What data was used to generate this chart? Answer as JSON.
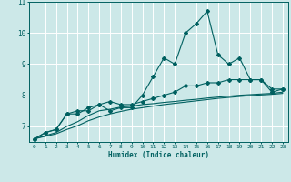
{
  "xlabel": "Humidex (Indice chaleur)",
  "background_color": "#cce8e8",
  "grid_color": "#ffffff",
  "line_color": "#006060",
  "x_values": [
    0,
    1,
    2,
    3,
    4,
    5,
    6,
    7,
    8,
    9,
    10,
    11,
    12,
    13,
    14,
    15,
    16,
    17,
    18,
    19,
    20,
    21,
    22,
    23
  ],
  "line1": [
    6.6,
    6.8,
    6.9,
    7.4,
    7.4,
    7.6,
    7.7,
    7.5,
    7.6,
    7.6,
    8.0,
    8.6,
    9.2,
    9.0,
    10.0,
    10.3,
    10.7,
    9.3,
    9.0,
    9.2,
    8.5,
    8.5,
    8.1,
    8.2
  ],
  "line2": [
    6.6,
    6.8,
    6.9,
    7.4,
    7.5,
    7.5,
    7.7,
    7.8,
    7.7,
    7.7,
    7.8,
    7.9,
    8.0,
    8.1,
    8.3,
    8.3,
    8.4,
    8.4,
    8.5,
    8.5,
    8.5,
    8.5,
    8.2,
    8.2
  ],
  "line3": [
    6.6,
    6.7,
    6.8,
    7.0,
    7.15,
    7.35,
    7.5,
    7.55,
    7.62,
    7.65,
    7.7,
    7.73,
    7.77,
    7.8,
    7.84,
    7.87,
    7.91,
    7.94,
    7.97,
    8.0,
    8.02,
    8.04,
    8.06,
    8.1
  ],
  "line4": [
    6.6,
    6.68,
    6.76,
    6.9,
    7.02,
    7.18,
    7.3,
    7.4,
    7.48,
    7.55,
    7.6,
    7.65,
    7.7,
    7.74,
    7.78,
    7.82,
    7.86,
    7.9,
    7.93,
    7.96,
    7.99,
    8.01,
    8.03,
    8.06
  ],
  "ylim_min": 6.5,
  "ylim_max": 11.0,
  "yticks": [
    7,
    8,
    9,
    10,
    11
  ],
  "xticks": [
    0,
    1,
    2,
    3,
    4,
    5,
    6,
    7,
    8,
    9,
    10,
    11,
    12,
    13,
    14,
    15,
    16,
    17,
    18,
    19,
    20,
    21,
    22,
    23
  ]
}
